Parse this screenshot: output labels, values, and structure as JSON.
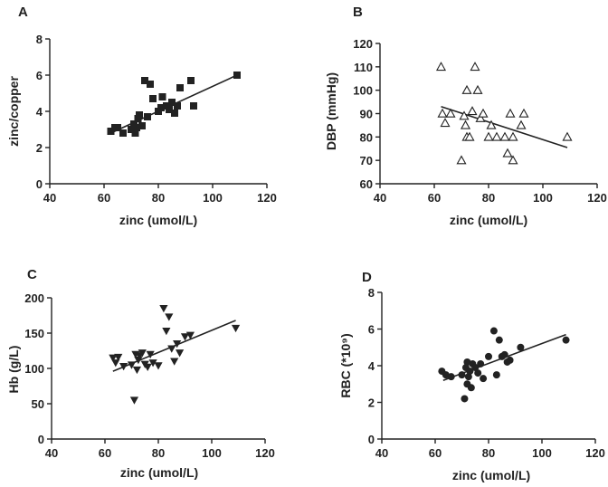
{
  "chart_data": [
    {
      "panel": "A",
      "type": "scatter",
      "marker": "square",
      "xlabel": "zinc (umol/L)",
      "ylabel": "zinc/copper",
      "xlim": [
        40,
        120
      ],
      "ylim": [
        0,
        8
      ],
      "xticks": [
        40,
        60,
        80,
        100,
        120
      ],
      "yticks": [
        0,
        2,
        4,
        6,
        8
      ],
      "points": [
        {
          "x": 62.5,
          "y": 2.9
        },
        {
          "x": 64,
          "y": 3.1
        },
        {
          "x": 65,
          "y": 3.1
        },
        {
          "x": 67,
          "y": 2.8
        },
        {
          "x": 70,
          "y": 3.0
        },
        {
          "x": 71,
          "y": 3.3
        },
        {
          "x": 71.5,
          "y": 2.8
        },
        {
          "x": 72,
          "y": 3.1
        },
        {
          "x": 72.5,
          "y": 3.6
        },
        {
          "x": 73,
          "y": 3.8
        },
        {
          "x": 74,
          "y": 3.2
        },
        {
          "x": 75,
          "y": 5.7
        },
        {
          "x": 76,
          "y": 3.7
        },
        {
          "x": 77,
          "y": 5.5
        },
        {
          "x": 78,
          "y": 4.7
        },
        {
          "x": 80,
          "y": 4.0
        },
        {
          "x": 81,
          "y": 4.2
        },
        {
          "x": 81.5,
          "y": 4.8
        },
        {
          "x": 83,
          "y": 4.3
        },
        {
          "x": 84,
          "y": 4.1
        },
        {
          "x": 85,
          "y": 4.5
        },
        {
          "x": 86,
          "y": 3.9
        },
        {
          "x": 87,
          "y": 4.3
        },
        {
          "x": 88,
          "y": 5.3
        },
        {
          "x": 92,
          "y": 5.7
        },
        {
          "x": 93,
          "y": 4.3
        },
        {
          "x": 109,
          "y": 6.0
        }
      ],
      "fit_line": [
        {
          "x": 62.5,
          "y": 2.8
        },
        {
          "x": 109,
          "y": 6.0
        }
      ]
    },
    {
      "panel": "B",
      "type": "scatter",
      "marker": "triangle-up-open",
      "xlabel": "zinc (umol/L)",
      "ylabel": "DBP (mmHg)",
      "xlim": [
        40,
        120
      ],
      "ylim": [
        60,
        120
      ],
      "xticks": [
        40,
        60,
        80,
        100,
        120
      ],
      "yticks": [
        60,
        70,
        80,
        90,
        100,
        110,
        120
      ],
      "points": [
        {
          "x": 62.5,
          "y": 110
        },
        {
          "x": 63,
          "y": 90
        },
        {
          "x": 64,
          "y": 86
        },
        {
          "x": 66,
          "y": 90
        },
        {
          "x": 70,
          "y": 70
        },
        {
          "x": 71,
          "y": 89
        },
        {
          "x": 71.5,
          "y": 85
        },
        {
          "x": 72,
          "y": 100
        },
        {
          "x": 72,
          "y": 80
        },
        {
          "x": 73,
          "y": 80
        },
        {
          "x": 74,
          "y": 91
        },
        {
          "x": 75,
          "y": 110
        },
        {
          "x": 76,
          "y": 100
        },
        {
          "x": 77,
          "y": 88
        },
        {
          "x": 78,
          "y": 90
        },
        {
          "x": 80,
          "y": 80
        },
        {
          "x": 81,
          "y": 85
        },
        {
          "x": 83,
          "y": 80
        },
        {
          "x": 86,
          "y": 80
        },
        {
          "x": 87,
          "y": 73
        },
        {
          "x": 88,
          "y": 90
        },
        {
          "x": 89,
          "y": 70
        },
        {
          "x": 89,
          "y": 80
        },
        {
          "x": 92,
          "y": 85
        },
        {
          "x": 93,
          "y": 90
        },
        {
          "x": 109,
          "y": 80
        }
      ],
      "fit_line": [
        {
          "x": 62.5,
          "y": 93
        },
        {
          "x": 109,
          "y": 75.5
        }
      ]
    },
    {
      "panel": "C",
      "type": "scatter",
      "marker": "triangle-down",
      "xlabel": "zinc (umol/L)",
      "ylabel": "Hb (g/L)",
      "xlim": [
        40,
        120
      ],
      "ylim": [
        0,
        200
      ],
      "xticks": [
        40,
        60,
        80,
        100,
        120
      ],
      "yticks": [
        0,
        50,
        100,
        150,
        200
      ],
      "points": [
        {
          "x": 63,
          "y": 115
        },
        {
          "x": 64,
          "y": 108
        },
        {
          "x": 65,
          "y": 116
        },
        {
          "x": 67,
          "y": 103
        },
        {
          "x": 70,
          "y": 105
        },
        {
          "x": 71,
          "y": 55
        },
        {
          "x": 71.5,
          "y": 120
        },
        {
          "x": 72,
          "y": 98
        },
        {
          "x": 72.5,
          "y": 112
        },
        {
          "x": 73,
          "y": 118
        },
        {
          "x": 74,
          "y": 122
        },
        {
          "x": 75,
          "y": 106
        },
        {
          "x": 76,
          "y": 102
        },
        {
          "x": 77,
          "y": 120
        },
        {
          "x": 78,
          "y": 108
        },
        {
          "x": 80,
          "y": 104
        },
        {
          "x": 82,
          "y": 185
        },
        {
          "x": 83,
          "y": 153
        },
        {
          "x": 84,
          "y": 173
        },
        {
          "x": 85,
          "y": 128
        },
        {
          "x": 86,
          "y": 110
        },
        {
          "x": 87,
          "y": 135
        },
        {
          "x": 88,
          "y": 122
        },
        {
          "x": 90,
          "y": 145
        },
        {
          "x": 92,
          "y": 147
        },
        {
          "x": 109,
          "y": 157
        }
      ],
      "fit_line": [
        {
          "x": 63,
          "y": 96
        },
        {
          "x": 109,
          "y": 168
        }
      ]
    },
    {
      "panel": "D",
      "type": "scatter",
      "marker": "circle",
      "xlabel": "zinc (umol/L)",
      "ylabel": "RBC (*10⁹)",
      "xlim": [
        40,
        120
      ],
      "ylim": [
        0,
        8
      ],
      "xticks": [
        40,
        60,
        80,
        100,
        120
      ],
      "yticks": [
        0,
        2,
        4,
        6,
        8
      ],
      "points": [
        {
          "x": 62.5,
          "y": 3.7
        },
        {
          "x": 64,
          "y": 3.5
        },
        {
          "x": 66,
          "y": 3.4
        },
        {
          "x": 70,
          "y": 3.5
        },
        {
          "x": 71,
          "y": 2.2
        },
        {
          "x": 71.5,
          "y": 3.9
        },
        {
          "x": 72,
          "y": 3.0
        },
        {
          "x": 72,
          "y": 4.2
        },
        {
          "x": 72.5,
          "y": 3.4
        },
        {
          "x": 73,
          "y": 3.7
        },
        {
          "x": 73.5,
          "y": 2.8
        },
        {
          "x": 74,
          "y": 4.1
        },
        {
          "x": 75,
          "y": 3.9
        },
        {
          "x": 76,
          "y": 3.6
        },
        {
          "x": 77,
          "y": 4.1
        },
        {
          "x": 78,
          "y": 3.3
        },
        {
          "x": 80,
          "y": 4.5
        },
        {
          "x": 82,
          "y": 5.9
        },
        {
          "x": 83,
          "y": 3.5
        },
        {
          "x": 84,
          "y": 5.4
        },
        {
          "x": 85,
          "y": 4.5
        },
        {
          "x": 86,
          "y": 4.6
        },
        {
          "x": 87,
          "y": 4.2
        },
        {
          "x": 88,
          "y": 4.3
        },
        {
          "x": 92,
          "y": 5.0
        },
        {
          "x": 109,
          "y": 5.4
        }
      ],
      "fit_line": [
        {
          "x": 63,
          "y": 3.2
        },
        {
          "x": 109,
          "y": 5.7
        }
      ]
    }
  ]
}
